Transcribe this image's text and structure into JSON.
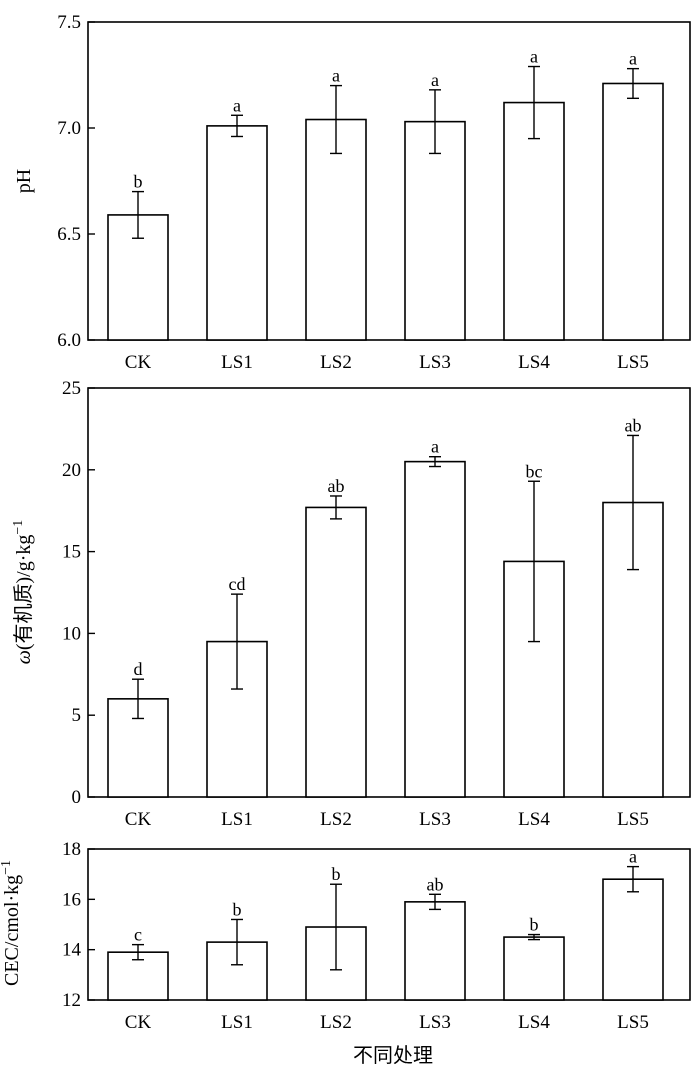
{
  "x_axis_label": "不同处理",
  "chart_data": [
    {
      "type": "bar",
      "categories": [
        "CK",
        "LS1",
        "LS2",
        "LS3",
        "LS4",
        "LS5"
      ],
      "ylabel": "pH",
      "ylim": [
        6.0,
        7.5
      ],
      "yticks": [
        6.0,
        6.5,
        7.0,
        7.5
      ],
      "ytick_labels": [
        "6.0",
        "6.5",
        "7.0",
        "7.5"
      ],
      "values": [
        6.59,
        7.01,
        7.04,
        7.03,
        7.12,
        7.21
      ],
      "errors": [
        0.11,
        0.05,
        0.16,
        0.15,
        0.17,
        0.07
      ],
      "significance": [
        "b",
        "a",
        "a",
        "a",
        "a",
        "a"
      ]
    },
    {
      "type": "bar",
      "categories": [
        "CK",
        "LS1",
        "LS2",
        "LS3",
        "LS4",
        "LS5"
      ],
      "ylabel": "ω(有机质)/g·kg",
      "ylabel_superscript": "−1",
      "ylim": [
        0,
        25
      ],
      "yticks": [
        0,
        5,
        10,
        15,
        20,
        25
      ],
      "ytick_labels": [
        "0",
        "5",
        "10",
        "15",
        "20",
        "25"
      ],
      "values": [
        6.0,
        9.5,
        17.7,
        20.5,
        14.4,
        18.0
      ],
      "errors": [
        1.2,
        2.9,
        0.7,
        0.3,
        4.9,
        4.1
      ],
      "significance": [
        "d",
        "cd",
        "ab",
        "a",
        "bc",
        "ab"
      ]
    },
    {
      "type": "bar",
      "categories": [
        "CK",
        "LS1",
        "LS2",
        "LS3",
        "LS4",
        "LS5"
      ],
      "ylabel": "CEC/cmol·kg",
      "ylabel_superscript": "−1",
      "ylim": [
        12,
        18
      ],
      "yticks": [
        12,
        14,
        16,
        18
      ],
      "ytick_labels": [
        "12",
        "14",
        "16",
        "18"
      ],
      "values": [
        13.9,
        14.3,
        14.9,
        15.9,
        14.5,
        16.8
      ],
      "errors": [
        0.3,
        0.9,
        1.7,
        0.3,
        0.1,
        0.5
      ],
      "significance": [
        "c",
        "b",
        "b",
        "ab",
        "b",
        "a"
      ]
    }
  ]
}
